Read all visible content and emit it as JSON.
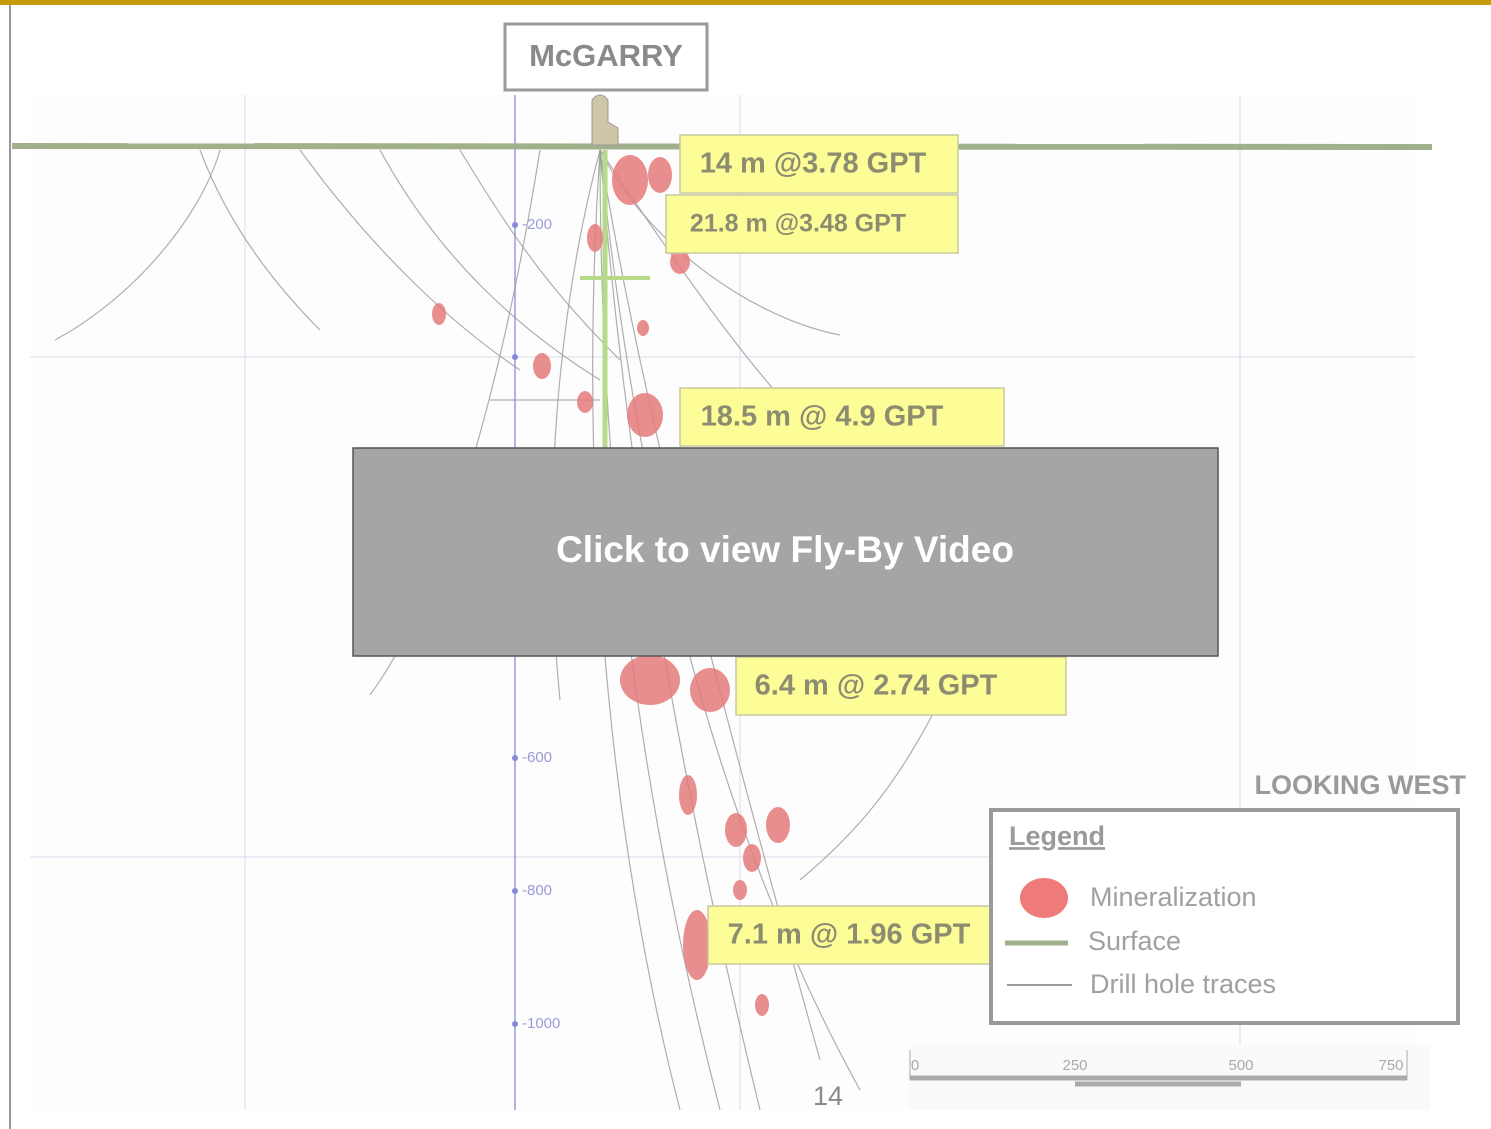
{
  "header": {
    "title": "McGARRY"
  },
  "intercepts": [
    "14 m @3.78 GPT",
    "21.8 m @3.48 GPT",
    "18.5 m @ 4.9 GPT",
    "6.4 m @ 2.74 GPT",
    "7.1 m @ 1.96 GPT"
  ],
  "depth_labels": [
    "-200",
    "-600",
    "-800",
    "-1000"
  ],
  "orientation": "LOOKING WEST",
  "legend": {
    "title": "Legend",
    "items": [
      "Mineralization",
      "Surface",
      "Drill hole traces"
    ]
  },
  "scale_bar": [
    "0",
    "250",
    "500",
    "750"
  ],
  "video_button": "Click to view Fly-By Video",
  "page_number": "14"
}
